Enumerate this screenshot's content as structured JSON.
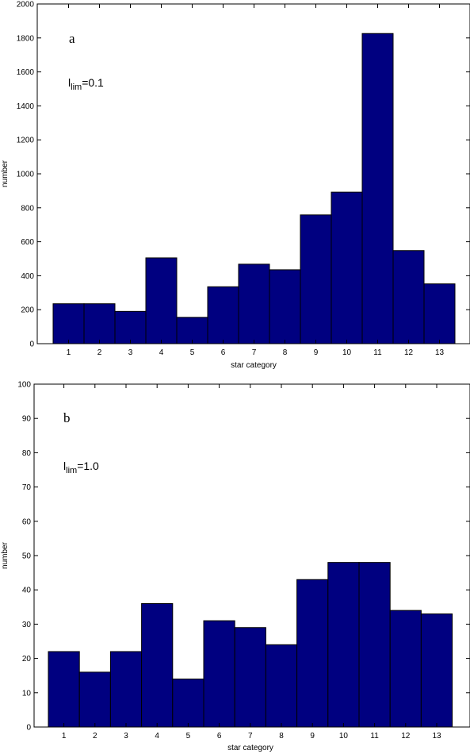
{
  "chart_data": [
    {
      "type": "bar",
      "panel_label": "a",
      "annotation": {
        "base": "l",
        "subscript": "lim",
        "value": "=0.1"
      },
      "xlabel": "star category",
      "ylabel": "number",
      "categories": [
        "1",
        "2",
        "3",
        "4",
        "5",
        "6",
        "7",
        "8",
        "9",
        "10",
        "11",
        "12",
        "13"
      ],
      "values": [
        235,
        235,
        190,
        505,
        155,
        335,
        468,
        435,
        758,
        892,
        1826,
        548,
        352
      ],
      "ylim": [
        0,
        2000
      ],
      "yticks": [
        "0",
        "200",
        "400",
        "600",
        "800",
        "1000",
        "1200",
        "1400",
        "1600",
        "1800",
        "2000"
      ],
      "bar_color": "#000080",
      "grid": false
    },
    {
      "type": "bar",
      "panel_label": "b",
      "annotation": {
        "base": "l",
        "subscript": "lim",
        "value": "=1.0"
      },
      "xlabel": "star category",
      "ylabel": "number",
      "categories": [
        "1",
        "2",
        "3",
        "4",
        "5",
        "6",
        "7",
        "8",
        "9",
        "10",
        "11",
        "12",
        "13"
      ],
      "values": [
        22,
        16,
        22,
        36,
        14,
        31,
        29,
        24,
        43,
        48,
        48,
        34,
        33
      ],
      "ylim": [
        0,
        100
      ],
      "yticks": [
        "0",
        "10",
        "20",
        "30",
        "40",
        "50",
        "60",
        "70",
        "80",
        "90",
        "100"
      ],
      "bar_color": "#000080",
      "grid": false
    }
  ]
}
